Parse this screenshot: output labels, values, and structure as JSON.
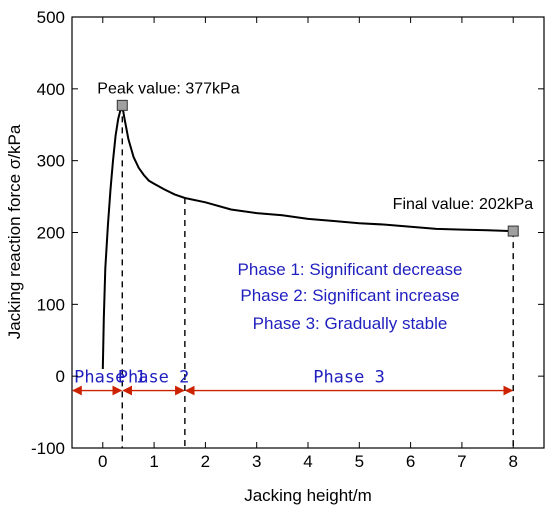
{
  "chart_data": {
    "type": "line",
    "xlabel": "Jacking height/m",
    "ylabel": "Jacking reaction force σ/kPa",
    "xlim": [
      -0.6,
      8.6
    ],
    "ylim": [
      -100,
      500
    ],
    "x_ticks": [
      0,
      1,
      2,
      3,
      4,
      5,
      6,
      7,
      8
    ],
    "y_ticks": [
      -100,
      0,
      100,
      200,
      300,
      400,
      500
    ],
    "grid": false,
    "series": [
      {
        "x": [
          0.0,
          0.02,
          0.05,
          0.1,
          0.15,
          0.2,
          0.25,
          0.3,
          0.35,
          0.38,
          0.42,
          0.5,
          0.6,
          0.7,
          0.8,
          0.9,
          1.0,
          1.2,
          1.4,
          1.6,
          2.0,
          2.5,
          3.0,
          3.5,
          4.0,
          4.5,
          5.0,
          5.5,
          6.0,
          6.5,
          7.0,
          7.5,
          8.0
        ],
        "y": [
          10,
          80,
          150,
          210,
          260,
          300,
          335,
          358,
          372,
          377,
          360,
          330,
          305,
          290,
          280,
          272,
          268,
          260,
          253,
          248,
          242,
          232,
          227,
          224,
          219,
          216,
          213,
          211,
          208,
          205,
          204,
          203,
          202
        ],
        "color": "#000000"
      }
    ],
    "markers": [
      {
        "x": 0.38,
        "y": 377
      },
      {
        "x": 8.0,
        "y": 202
      }
    ],
    "annotations": {
      "peak": "Peak value: 377kPa",
      "final": "Final value: 202kPa"
    },
    "dashed_lines_x": [
      0.38,
      1.6,
      8.0
    ],
    "phase_legend": [
      "Phase 1: Significant decrease",
      "Phase 2: Significant increase",
      "Phase 3: Gradually stable"
    ],
    "phase_labels": [
      "Phase 1",
      "Phase 2",
      "Phase 3"
    ],
    "phase_arrow_y": -20,
    "phase_ranges": [
      [
        -0.6,
        0.38
      ],
      [
        0.38,
        1.6
      ],
      [
        1.6,
        8.0
      ]
    ],
    "colors": {
      "curve": "#000000",
      "phase_text": "#1f1fbf",
      "arrow": "#cc2200",
      "marker_fill": "#a0a0a0"
    }
  }
}
